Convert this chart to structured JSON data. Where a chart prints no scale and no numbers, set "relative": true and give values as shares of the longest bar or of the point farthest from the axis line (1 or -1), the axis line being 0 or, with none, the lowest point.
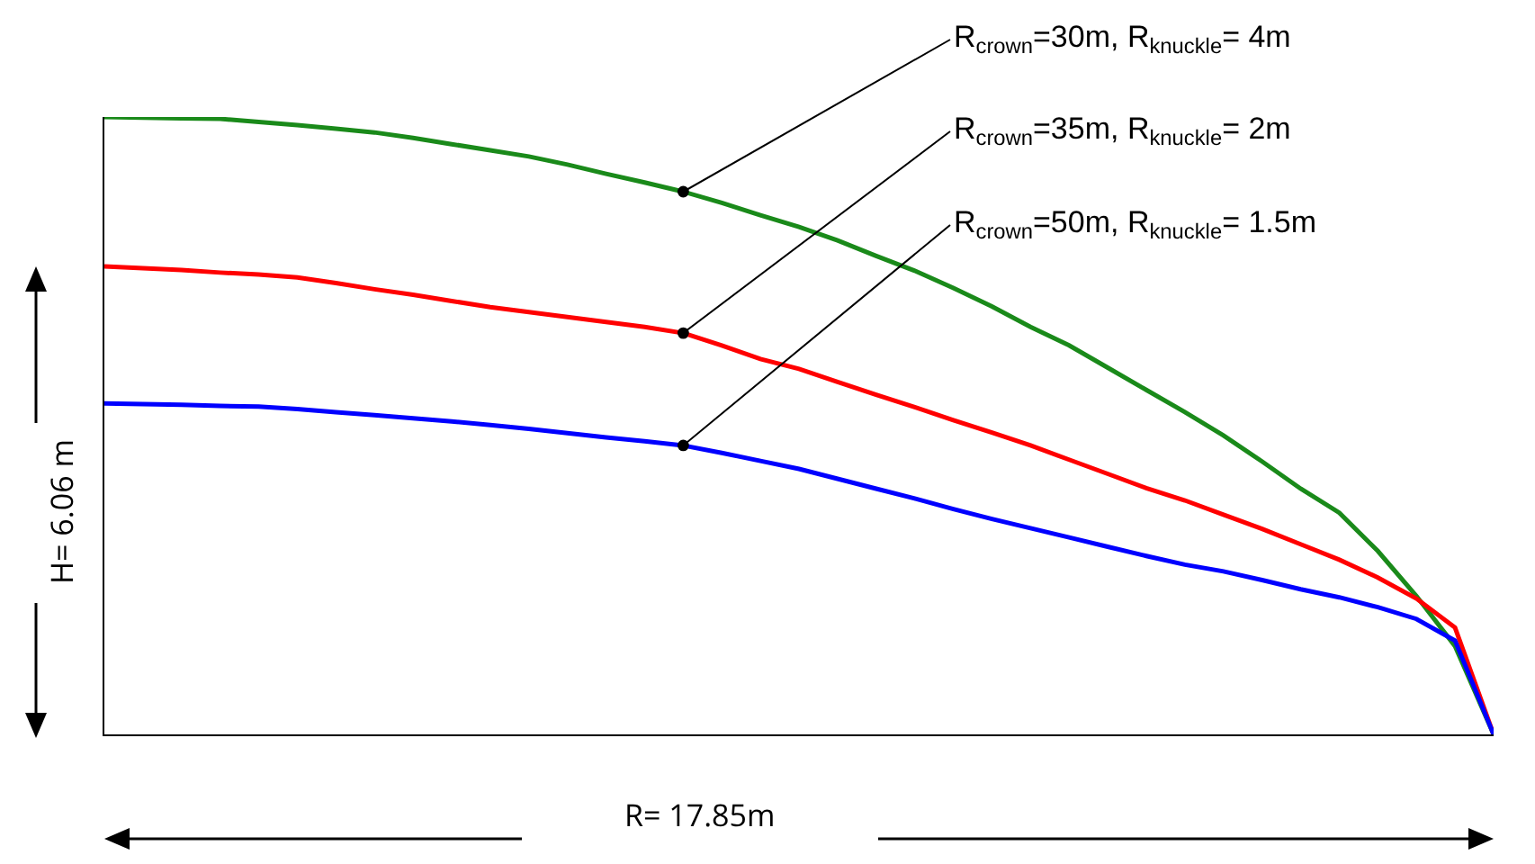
{
  "chart_data": {
    "type": "line",
    "relative": true,
    "legend": false,
    "grid": false,
    "marker": "none",
    "line_style": "solid",
    "annotations": [
      "R= 17.85m",
      "H= 6.06 m"
    ],
    "categories": [
      null,
      null,
      null,
      null,
      null,
      null,
      null,
      null,
      null,
      null,
      null,
      null,
      null,
      null,
      null,
      null,
      null,
      null,
      null,
      null,
      null,
      null,
      null,
      null,
      null,
      null,
      null,
      null,
      null,
      null,
      null,
      null,
      null,
      null,
      null,
      null,
      null
    ],
    "series": [
      {
        "name": "R$_{crown}$=30m, R$_{knuckle}$= 4m",
        "color": "#1a8a1a",
        "values": [
          1,
          0.999,
          0.998,
          0.997,
          0.992,
          0.987,
          0.981,
          0.975,
          0.966,
          0.956,
          0.946,
          0.936,
          0.923,
          0.908,
          0.894,
          0.879,
          0.861,
          0.841,
          0.822,
          0.8,
          0.775,
          0.751,
          0.723,
          0.693,
          0.66,
          0.63,
          0.594,
          0.558,
          0.522,
          0.484,
          0.442,
          0.398,
          0.359,
          0.297,
          0.224,
          0.143,
          0
        ]
      },
      {
        "name": "R$_{crown}$=35m, R$_{knuckle}$= 2m",
        "color": "#ff0000",
        "values": [
          0.758,
          0.755,
          0.752,
          0.748,
          0.745,
          0.74,
          0.731,
          0.721,
          0.712,
          0.702,
          0.692,
          0.684,
          0.676,
          0.668,
          0.66,
          0.65,
          0.63,
          0.608,
          0.592,
          0.571,
          0.55,
          0.53,
          0.509,
          0.489,
          0.468,
          0.445,
          0.422,
          0.399,
          0.379,
          0.356,
          0.333,
          0.308,
          0.283,
          0.254,
          0.22,
          0.173,
          0
        ]
      },
      {
        "name": "R$_{crown}$=50m, R$_{knuckle}$= 1.5m",
        "color": "#0000ff",
        "values": [
          0.536,
          0.535,
          0.534,
          0.532,
          0.531,
          0.527,
          0.522,
          0.517,
          0.512,
          0.507,
          0.501,
          0.495,
          0.488,
          0.481,
          0.475,
          0.468,
          0.456,
          0.443,
          0.43,
          0.414,
          0.398,
          0.382,
          0.365,
          0.349,
          0.334,
          0.319,
          0.304,
          0.289,
          0.275,
          0.264,
          0.25,
          0.235,
          0.222,
          0.206,
          0.187,
          0.152,
          0
        ]
      }
    ]
  }
}
